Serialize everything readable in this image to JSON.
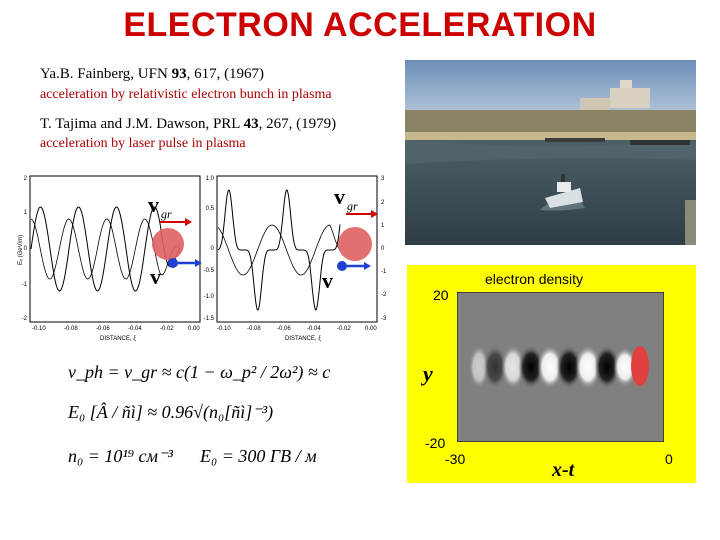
{
  "slide": {
    "title": "ELECTRON ACCELERATION",
    "ref1": {
      "authors": "Ya.B. Fainberg, UFN ",
      "vol": "93",
      "rest": ", 617, (1967)",
      "desc": "acceleration by relativistic electron bunch in plasma"
    },
    "ref2": {
      "authors": "T. Tajima and J.M. Dawson, PRL ",
      "vol": "43",
      "rest": ", 267, (1979)",
      "desc": "acceleration by laser pulse in plasma"
    }
  },
  "plots": {
    "left": {
      "ylabel": "Eₓ (GeV/m)",
      "yticks": [
        "2",
        "1",
        "0",
        "-1",
        "-2"
      ],
      "xticks": [
        "-0.10",
        "-0.08",
        "-0.06",
        "-0.04",
        "-0.02",
        "0.00"
      ]
    },
    "right": {
      "yticks_left": [
        "1.0",
        "0.5",
        "0",
        "-0.5",
        "-1.0",
        "-1.5"
      ],
      "yticks_right": [
        "3",
        "2",
        "1",
        "0",
        "-1",
        "-2",
        "-3"
      ],
      "xticks": [
        "-0.10",
        "-0.08",
        "-0.06",
        "-0.04",
        "-0.02",
        "0.00"
      ],
      "xlabel": "DISTANCE, ξ"
    },
    "xlabel": "DISTANCE, ξ",
    "vgr_label": "v",
    "vgr_sub": "gr",
    "arrow_label": "v"
  },
  "equations": {
    "eq1": "v_ph = v_gr ≈ c(1 − ω_p² / 2ω²) ≈ c",
    "eq2": "E₀ [Â / ñì] ≈ 0.96√(n₀[ñì]⁻³)",
    "eq3a": "n₀ = 10¹⁹ cм⁻³",
    "eq3b": "E₀ = 300 ГВ / м"
  },
  "density": {
    "title": "electron density",
    "y_top": "20",
    "y_bottom": "-20",
    "y_axis": "y",
    "x_left": "-30",
    "x_axis": "x-t",
    "x_right": "0"
  }
}
